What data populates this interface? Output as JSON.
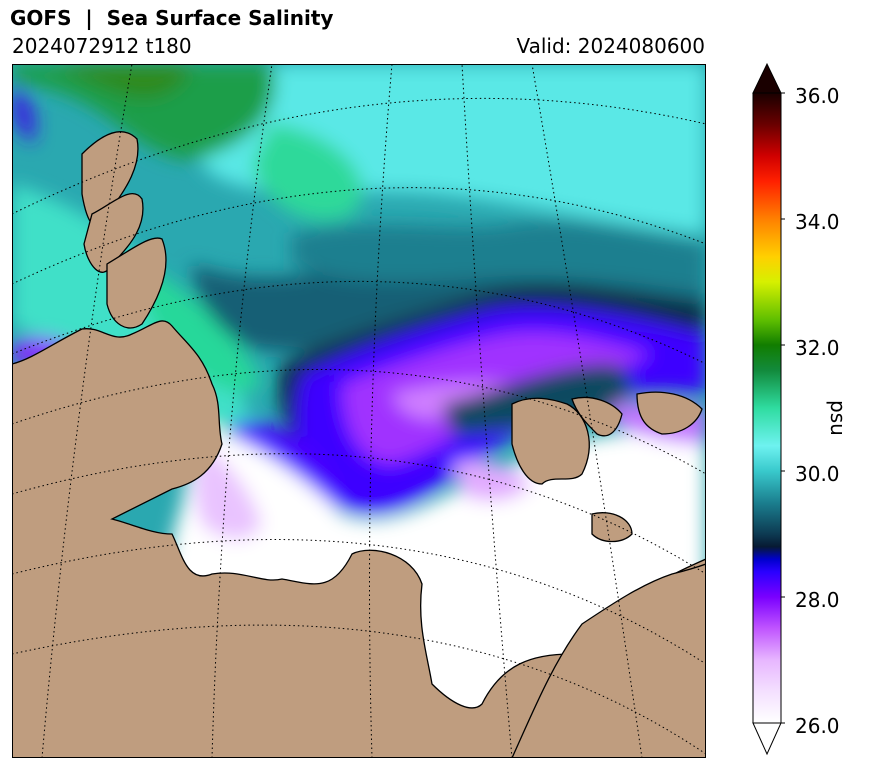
{
  "header": {
    "title": "GOFS  |  Sea Surface Salinity",
    "run": "2024072912 t180",
    "valid": "Valid: 2024080600"
  },
  "colorbar": {
    "unit": "psu",
    "ticks": [
      "36.0",
      "34.0",
      "32.0",
      "30.0",
      "28.0",
      "26.0"
    ],
    "min": 26.0,
    "max": 36.0,
    "extend": "both",
    "stops": [
      {
        "v": 26.0,
        "c": "#ffffff"
      },
      {
        "v": 26.5,
        "c": "#f4e0ff"
      },
      {
        "v": 27.0,
        "c": "#e7b6ff"
      },
      {
        "v": 27.5,
        "c": "#c055ff"
      },
      {
        "v": 28.0,
        "c": "#7a00ff"
      },
      {
        "v": 28.4,
        "c": "#2a00ff"
      },
      {
        "v": 28.6,
        "c": "#0000cc"
      },
      {
        "v": 28.8,
        "c": "#071a33"
      },
      {
        "v": 29.0,
        "c": "#0d3a52"
      },
      {
        "v": 29.5,
        "c": "#1b7f8f"
      },
      {
        "v": 30.0,
        "c": "#39c9cc"
      },
      {
        "v": 30.4,
        "c": "#6ef2f0"
      },
      {
        "v": 31.0,
        "c": "#2fdca0"
      },
      {
        "v": 31.6,
        "c": "#128a3c"
      },
      {
        "v": 32.0,
        "c": "#117d00"
      },
      {
        "v": 32.4,
        "c": "#5fbf00"
      },
      {
        "v": 33.0,
        "c": "#d6f000"
      },
      {
        "v": 33.4,
        "c": "#ffd000"
      },
      {
        "v": 34.0,
        "c": "#ff8000"
      },
      {
        "v": 34.6,
        "c": "#ff2000"
      },
      {
        "v": 35.0,
        "c": "#d00000"
      },
      {
        "v": 35.5,
        "c": "#6a0000"
      },
      {
        "v": 36.0,
        "c": "#1a0000"
      }
    ]
  },
  "map": {
    "land_color": "#bf9d7f",
    "graticule": "dotted"
  }
}
